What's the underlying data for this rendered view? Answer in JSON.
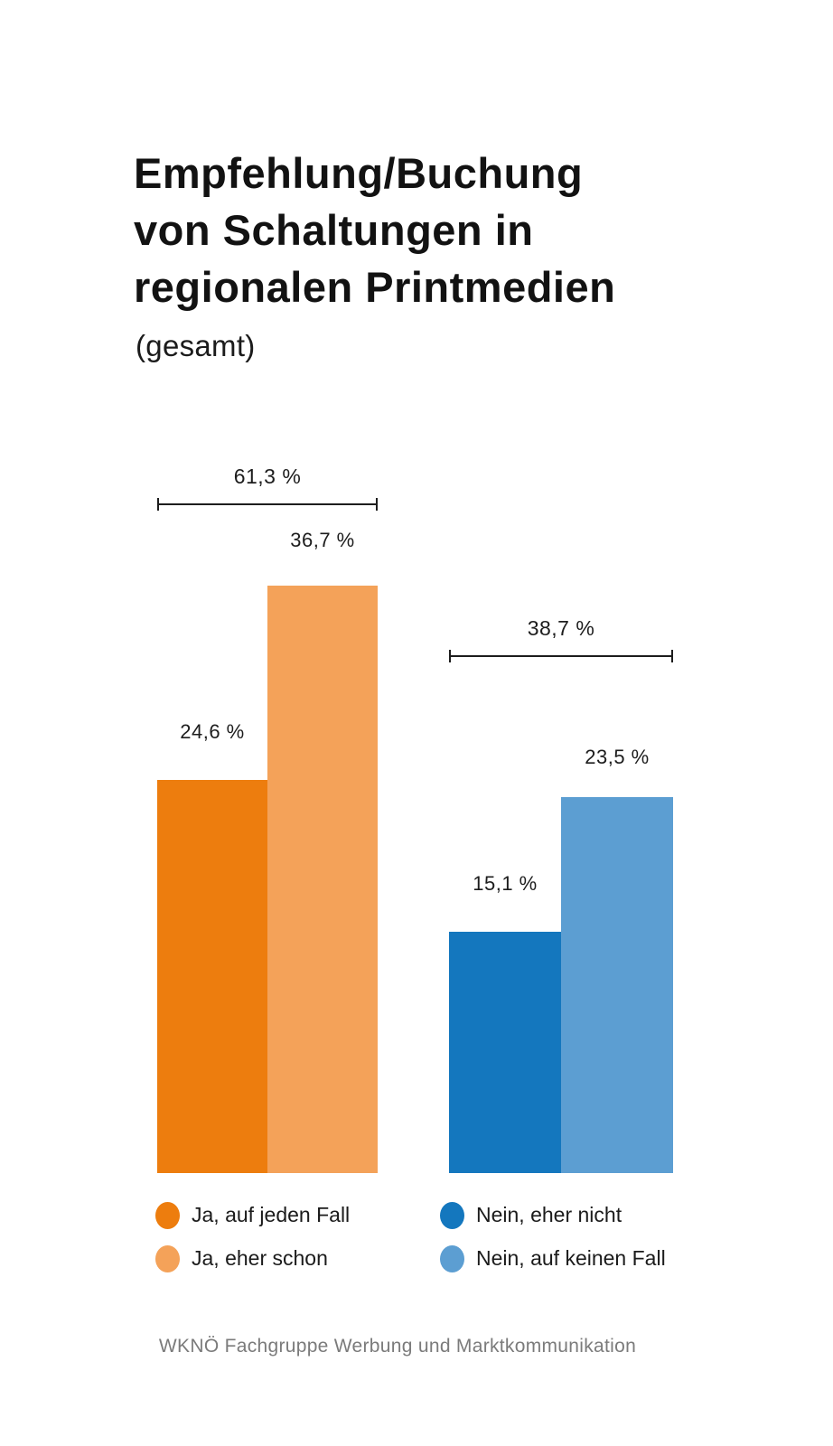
{
  "title": {
    "lines": [
      "Empfehlung/Buchung",
      "von Schaltungen in",
      "regionalen Printmedien"
    ],
    "subtitle": "(gesamt)"
  },
  "colors": {
    "ja_auf_jeden_fall": "#ED7D0E",
    "ja_eher_schon": "#F4A259",
    "nein_eher_nicht": "#1477BE",
    "nein_auf_keinen_fall": "#5C9ED2",
    "text": "#1B1B1B",
    "footer_text": "#7B7B7B",
    "background": "#FFFFFF"
  },
  "chart_data": {
    "type": "bar",
    "title": "Empfehlung/Buchung von Schaltungen in regionalen Printmedien (gesamt)",
    "unit": "%",
    "ylim": [
      0,
      40
    ],
    "grid": false,
    "legend_position": "bottom",
    "groups": [
      {
        "name": "Ja",
        "total_value": 61.3,
        "total_label": "61,3 %",
        "bars": [
          {
            "label": "Ja, auf jeden Fall",
            "value": 24.6,
            "display": "24,6 %",
            "color": "#ED7D0E"
          },
          {
            "label": "Ja, eher schon",
            "value": 36.7,
            "display": "36,7 %",
            "color": "#F4A259"
          }
        ]
      },
      {
        "name": "Nein",
        "total_value": 38.7,
        "total_label": "38,7 %",
        "bars": [
          {
            "label": "Nein, eher nicht",
            "value": 15.1,
            "display": "15,1 %",
            "color": "#1477BE"
          },
          {
            "label": "Nein, auf keinen Fall",
            "value": 23.5,
            "display": "23,5 %",
            "color": "#5C9ED2"
          }
        ]
      }
    ]
  },
  "legend": {
    "items": [
      {
        "label": "Ja, auf jeden Fall",
        "color": "#ED7D0E"
      },
      {
        "label": "Ja, eher schon",
        "color": "#F4A259"
      },
      {
        "label": "Nein, eher nicht",
        "color": "#1477BE"
      },
      {
        "label": "Nein, auf keinen Fall",
        "color": "#5C9ED2"
      }
    ]
  },
  "footer": {
    "text": "WKNÖ Fachgruppe Werbung und Marktkommunikation"
  }
}
